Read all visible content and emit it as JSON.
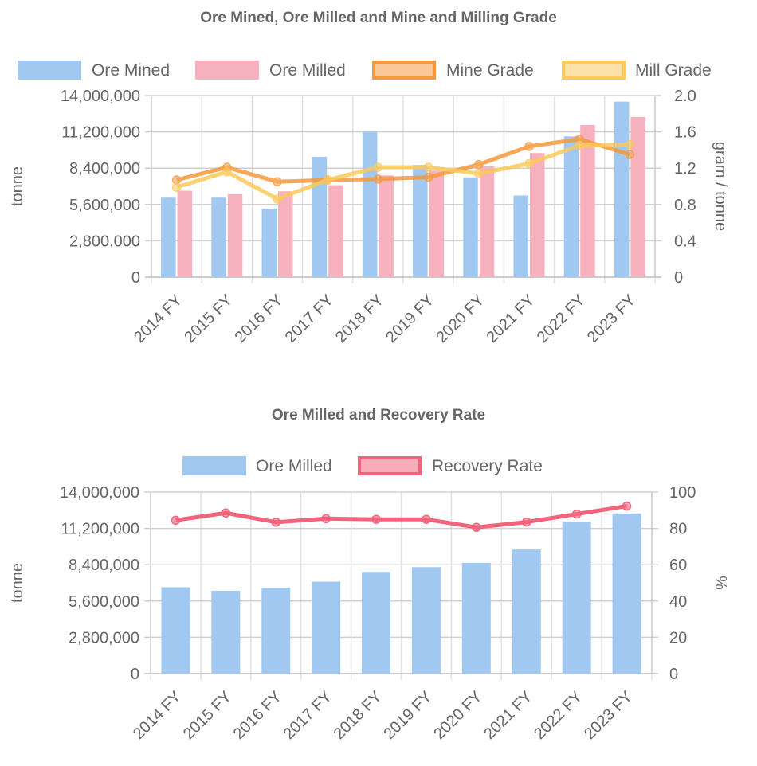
{
  "chart_data": [
    {
      "type": "bar",
      "title": "Ore Mined, Ore Milled and Mine and Milling Grade",
      "categories": [
        "2014 FY",
        "2015 FY",
        "2016 FY",
        "2017 FY",
        "2018 FY",
        "2019 FY",
        "2020 FY",
        "2021 FY",
        "2022 FY",
        "2023 FY"
      ],
      "ylabel": "tonne",
      "y2label": "gram / tonne",
      "ylim": [
        0,
        14000000
      ],
      "y2lim": [
        0,
        2.0
      ],
      "yticks": [
        "0",
        "2,800,000",
        "5,600,000",
        "8,400,000",
        "11,200,000",
        "14,000,000"
      ],
      "y2ticks": [
        "0",
        "0.4",
        "0.8",
        "1.2",
        "1.6",
        "2.0"
      ],
      "grid": true,
      "legend_position": "top",
      "series": [
        {
          "name": "Ore Mined",
          "type": "bar",
          "axis": "left",
          "color": "#a0c8f0",
          "values": [
            6130000,
            6130000,
            5280000,
            9270000,
            11200000,
            8650000,
            7690000,
            6290000,
            10850000,
            13530000
          ]
        },
        {
          "name": "Ore Milled",
          "type": "bar",
          "axis": "left",
          "color": "#f7b0bd",
          "values": [
            6660000,
            6390000,
            6620000,
            7090000,
            7840000,
            8210000,
            8540000,
            9570000,
            11730000,
            12350000
          ]
        },
        {
          "name": "Mine Grade",
          "type": "line",
          "axis": "right",
          "color": "#f59a3c",
          "values": [
            1.07,
            1.21,
            1.05,
            1.07,
            1.08,
            1.1,
            1.24,
            1.44,
            1.52,
            1.35
          ]
        },
        {
          "name": "Mill Grade",
          "type": "line",
          "axis": "right",
          "color": "#fcc95a",
          "values": [
            0.99,
            1.16,
            0.86,
            1.07,
            1.21,
            1.21,
            1.14,
            1.25,
            1.45,
            1.46
          ]
        }
      ]
    },
    {
      "type": "bar",
      "title": "Ore Milled and Recovery Rate",
      "categories": [
        "2014 FY",
        "2015 FY",
        "2016 FY",
        "2017 FY",
        "2018 FY",
        "2019 FY",
        "2020 FY",
        "2021 FY",
        "2022 FY",
        "2023 FY"
      ],
      "ylabel": "tonne",
      "y2label": "%",
      "ylim": [
        0,
        14000000
      ],
      "y2lim": [
        0,
        100
      ],
      "yticks": [
        "0",
        "2,800,000",
        "5,600,000",
        "8,400,000",
        "11,200,000",
        "14,000,000"
      ],
      "y2ticks": [
        "0",
        "20",
        "40",
        "60",
        "80",
        "100"
      ],
      "grid": true,
      "legend_position": "top",
      "series": [
        {
          "name": "Ore Milled",
          "type": "bar",
          "axis": "left",
          "color": "#a0c8f0",
          "values": [
            6660000,
            6390000,
            6620000,
            7090000,
            7840000,
            8210000,
            8540000,
            9570000,
            11730000,
            12350000
          ]
        },
        {
          "name": "Recovery Rate",
          "type": "line",
          "axis": "right",
          "color": "#f0657c",
          "values": [
            84.5,
            88.5,
            83.4,
            85.4,
            85.0,
            85.0,
            80.6,
            83.5,
            87.9,
            92.3
          ]
        }
      ]
    }
  ]
}
